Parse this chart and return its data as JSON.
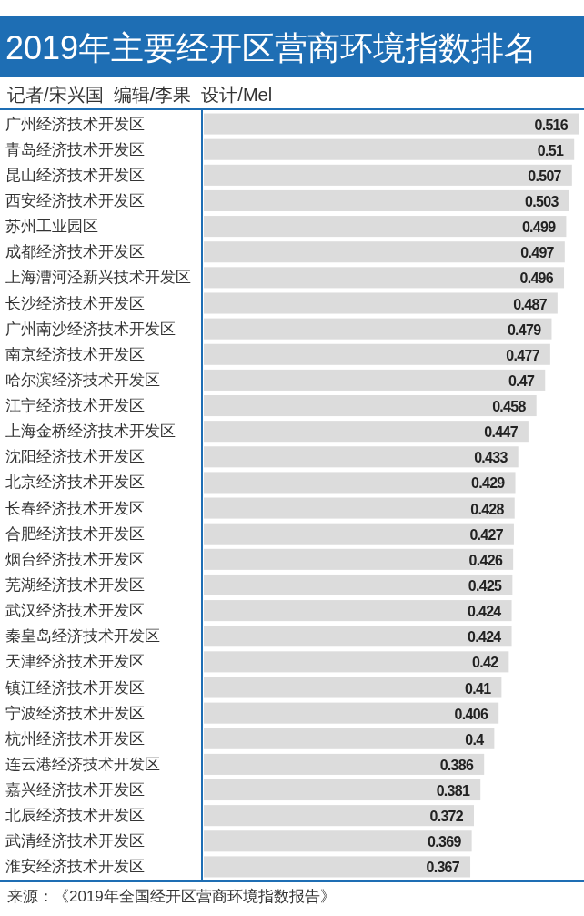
{
  "chart_data": {
    "type": "bar",
    "orientation": "horizontal",
    "title": "2019年主要经开区营商环境指数排名",
    "subtitle": "记者/宋兴国  编辑/李果  设计/Mel",
    "categories": [
      "广州经济技术开发区",
      "青岛经济技术开发区",
      "昆山经济技术开发区",
      "西安经济技术开发区",
      "苏州工业园区",
      "成都经济技术开发区",
      "上海漕河泾新兴技术开发区",
      "长沙经济技术开发区",
      "广州南沙经济技术开发区",
      "南京经济技术开发区",
      "哈尔滨经济技术开发区",
      "江宁经济技术开发区",
      "上海金桥经济技术开发区",
      "沈阳经济技术开发区",
      "北京经济技术开发区",
      "长春经济技术开发区",
      "合肥经济技术开发区",
      "烟台经济技术开发区",
      "芜湖经济技术开发区",
      "武汉经济技术开发区",
      "秦皇岛经济技术开发区",
      "天津经济技术开发区",
      "镇江经济技术开发区",
      "宁波经济技术开发区",
      "杭州经济技术开发区",
      "连云港经济技术开发区",
      "嘉兴经济技术开发区",
      "北辰经济技术开发区",
      "武清经济技术开发区",
      "淮安经济技术开发区"
    ],
    "values": [
      0.516,
      0.51,
      0.507,
      0.503,
      0.499,
      0.497,
      0.496,
      0.487,
      0.479,
      0.477,
      0.47,
      0.458,
      0.447,
      0.433,
      0.429,
      0.428,
      0.427,
      0.426,
      0.425,
      0.424,
      0.424,
      0.42,
      0.41,
      0.406,
      0.4,
      0.386,
      0.381,
      0.372,
      0.369,
      0.367
    ],
    "color": "#dcdcdc",
    "data_labels": true,
    "annotations": [
      "来源：《2019年全国经开区营商环境指数报告》"
    ]
  }
}
